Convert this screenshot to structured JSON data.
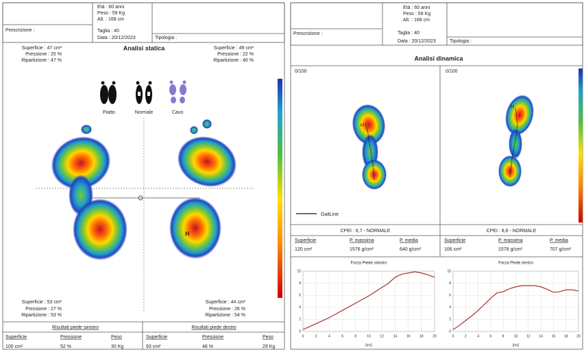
{
  "static": {
    "header": {
      "age": "Età : 60 anni",
      "weight": "Peso : 59 Kg",
      "height": "Alt. : 168 cm",
      "prescription": "Prescrizione :",
      "size": "Taglia : 40",
      "date": "Data : 20/12/2023",
      "type": "Tipologia :"
    },
    "title": "Analisi statica",
    "top_left": [
      "Superficie : 47 cm²",
      "Pressione : 25 %",
      "Ripartizione : 47 %"
    ],
    "top_right": [
      "Superficie : 49 cm²",
      "Pressione : 22 %",
      "Ripartizione : 46 %"
    ],
    "foot_types": [
      "Piatto",
      "Normale",
      "Cavo"
    ],
    "peak_marker": "H",
    "bottom_left": [
      "Superficie : 53 cm²",
      "Pressione : 27 %",
      "Ripartizione : 53 %"
    ],
    "bottom_right": [
      "Superficie : 44 cm²",
      "Pressione : 26 %",
      "Ripartizione : 54 %"
    ],
    "left_results": {
      "title": "Risultati piede sinistro",
      "headers": [
        "Superficie",
        "Pressione",
        "Peso"
      ],
      "values": [
        "100 cm²",
        "52 %",
        "30 Kg"
      ]
    },
    "right_results": {
      "title": "Risultati piede destro",
      "headers": [
        "Superficie",
        "Pressione",
        "Peso"
      ],
      "values": [
        "93 cm²",
        "48 %",
        "29 Kg"
      ]
    }
  },
  "dynamic": {
    "header": {
      "age": "Età : 60 anni",
      "weight": "Peso : 59 Kg",
      "height": "Alt. : 168 cm",
      "prescription": "Prescrizione :",
      "size": "Taglia : 40",
      "date": "Data : 20/12/2023",
      "type": "Tipologia :"
    },
    "title": "Analisi dinamica",
    "legend": "GaitLine",
    "panels": [
      {
        "scale": "0/100",
        "cpei": "CPEI : 6,7 - NORMALE",
        "headers": [
          "Superficie",
          "P. massima",
          "P. media"
        ],
        "values": [
          "120 cm²",
          "1576 g/cm²",
          "640 g/cm²"
        ]
      },
      {
        "scale": "0/100",
        "cpei": "CPEI : 8,6 - NORMALE",
        "headers": [
          "Superficie",
          "P. massima",
          "P. media"
        ],
        "values": [
          "106 cm²",
          "1578 g/cm²",
          "707 g/cm²"
        ]
      }
    ]
  },
  "chart_data": [
    {
      "type": "line",
      "title": "Forza Piede sinistro",
      "x_label": "[ms]",
      "color": "#a5322c",
      "grid": true,
      "x": [
        0,
        1,
        2,
        3,
        4,
        5,
        6,
        7,
        8,
        9,
        10,
        11,
        12,
        13,
        14,
        15,
        16,
        17,
        18,
        19,
        20
      ],
      "values": [
        0.3,
        0.8,
        1.3,
        1.8,
        2.3,
        2.9,
        3.5,
        4.1,
        4.7,
        5.3,
        5.9,
        6.6,
        7.3,
        8.0,
        9.0,
        9.5,
        9.7,
        9.9,
        9.7,
        9.4,
        9.0
      ],
      "xlim": [
        0,
        20
      ],
      "xticks": [
        0,
        2,
        4,
        6,
        8,
        10,
        12,
        14,
        16,
        18,
        20
      ],
      "ylim": [
        0,
        10
      ],
      "yticks": [
        0,
        2,
        4,
        6,
        8,
        10
      ]
    },
    {
      "type": "line",
      "title": "Forza Piede destro",
      "x_label": "[ms]",
      "color": "#a5322c",
      "grid": true,
      "x": [
        0,
        1,
        2,
        3,
        4,
        5,
        6,
        7,
        8,
        9,
        10,
        11,
        12,
        13,
        14,
        15,
        16,
        17,
        18,
        19,
        20
      ],
      "values": [
        0.3,
        1.0,
        1.8,
        2.6,
        3.5,
        4.5,
        5.5,
        6.4,
        6.6,
        7.1,
        7.4,
        7.6,
        7.6,
        7.6,
        7.4,
        7.0,
        6.5,
        6.6,
        6.9,
        6.9,
        6.7
      ],
      "xlim": [
        0,
        20
      ],
      "xticks": [
        0,
        2,
        4,
        6,
        8,
        10,
        12,
        14,
        16,
        18,
        20
      ],
      "ylim": [
        0,
        10
      ],
      "yticks": [
        0,
        2,
        4,
        6,
        8,
        10
      ]
    }
  ]
}
